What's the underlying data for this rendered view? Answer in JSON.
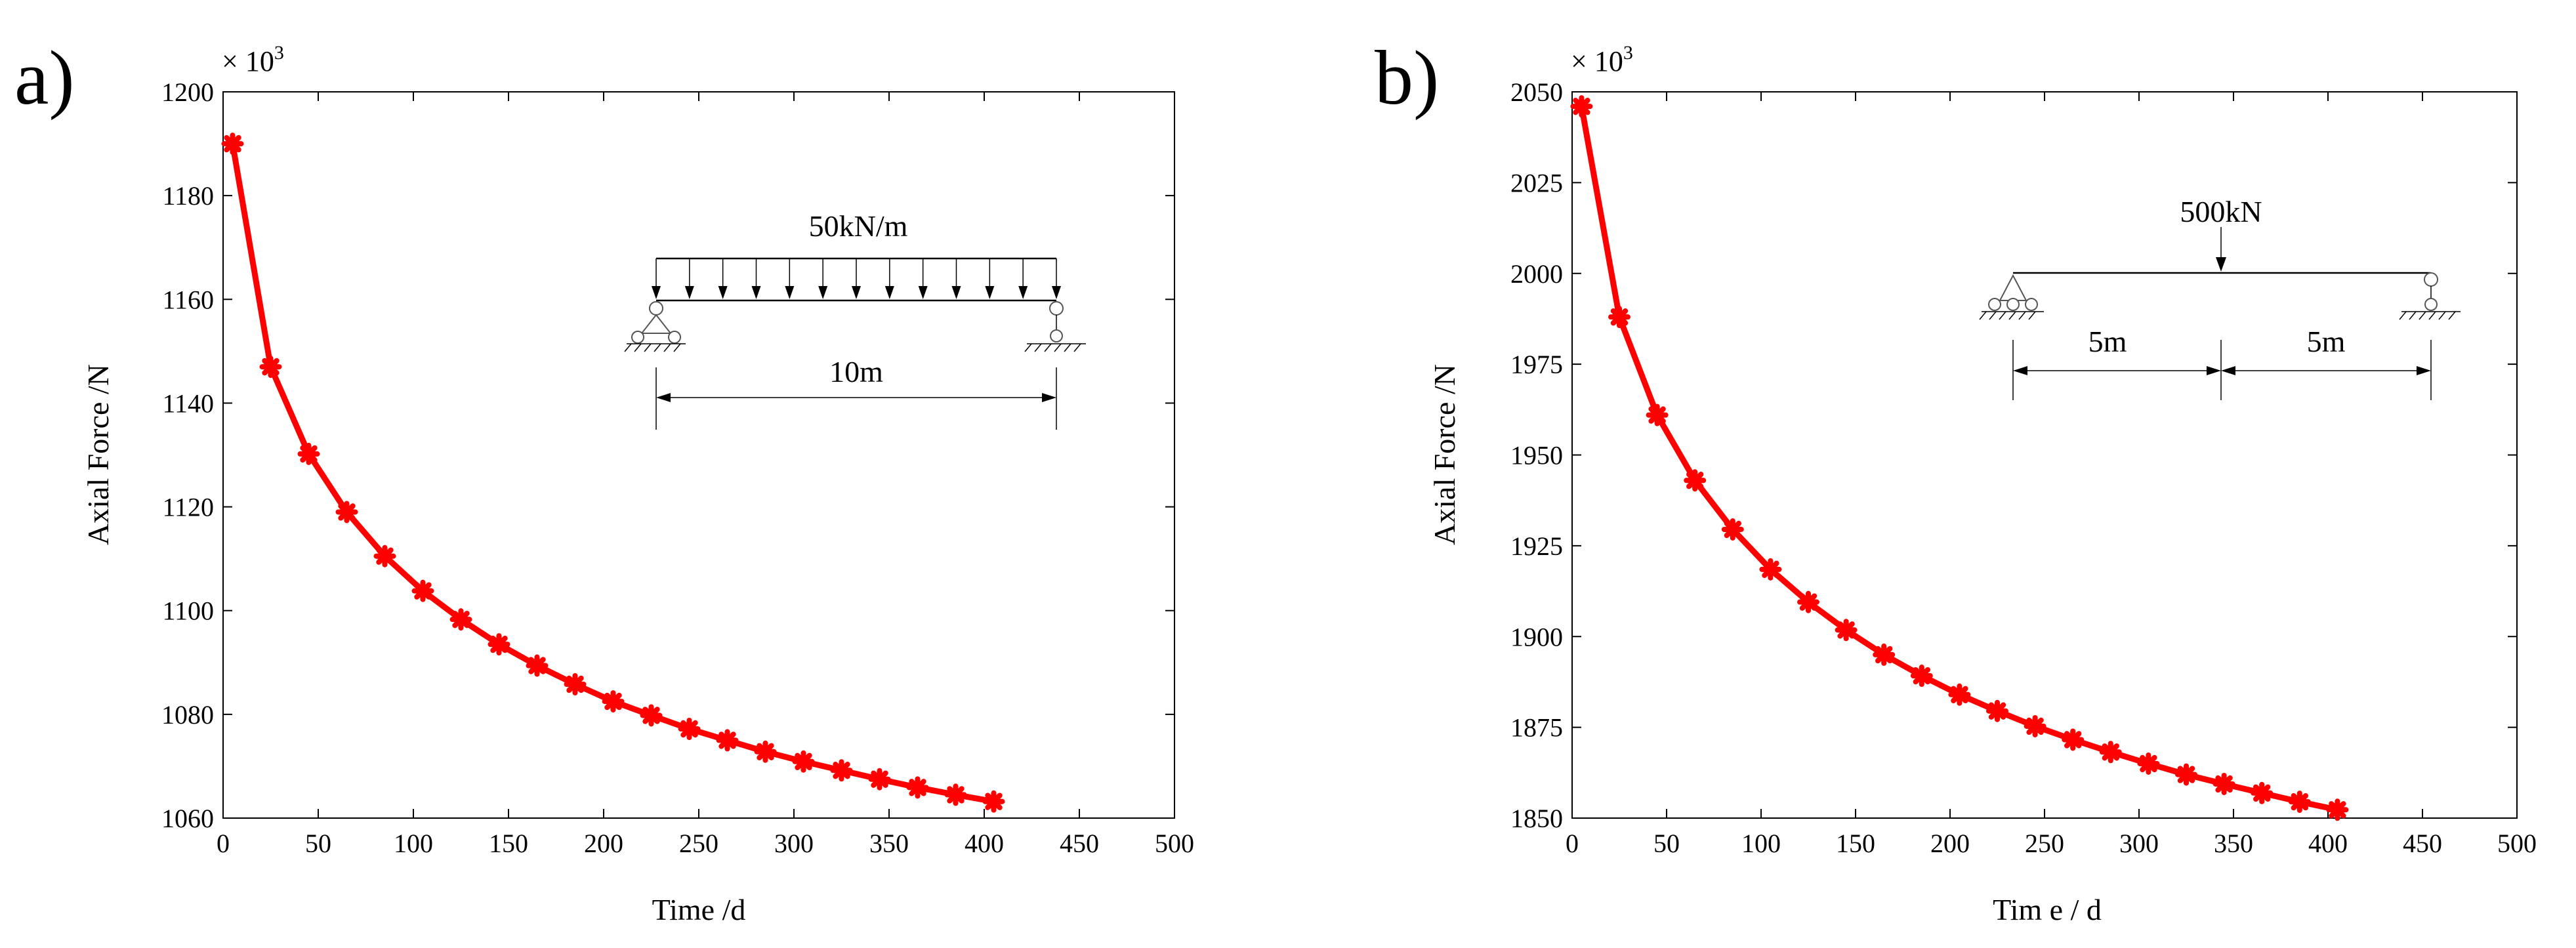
{
  "chart_data": [
    {
      "panel": "a)",
      "type": "line",
      "xlabel": "Time /d",
      "ylabel": "Axial Force /N",
      "y_multiplier": "× 10",
      "y_multiplier_exp": "3",
      "xlim": [
        0,
        500
      ],
      "ylim": [
        1060,
        1200
      ],
      "xticks": [
        0,
        50,
        100,
        150,
        200,
        250,
        300,
        350,
        400,
        450,
        500
      ],
      "yticks": [
        1060,
        1080,
        1100,
        1120,
        1140,
        1160,
        1180,
        1200
      ],
      "x": [
        5,
        25,
        45,
        65,
        85,
        105,
        125,
        145,
        165,
        185,
        205,
        225,
        245,
        265,
        285,
        305,
        325,
        345,
        365,
        385,
        405
      ],
      "values": [
        1190,
        1147,
        1130.2,
        1119,
        1110.5,
        1103.8,
        1098.3,
        1093.5,
        1089.4,
        1085.8,
        1082.5,
        1079.8,
        1077.2,
        1075,
        1072.8,
        1070.9,
        1069.2,
        1067.5,
        1065.9,
        1064.5,
        1063.2
      ],
      "color": "#ff0000",
      "annotations": {
        "load": "50kN/m",
        "span": "10m"
      }
    },
    {
      "panel": "b)",
      "type": "line",
      "xlabel": "Tim e  /  d",
      "ylabel": "Axial Force /N",
      "y_multiplier": "× 10",
      "y_multiplier_exp": "3",
      "xlim": [
        0,
        500
      ],
      "ylim": [
        1850,
        2050
      ],
      "xticks": [
        0,
        50,
        100,
        150,
        200,
        250,
        300,
        350,
        400,
        450,
        500
      ],
      "yticks": [
        1850,
        1875,
        1900,
        1925,
        1950,
        1975,
        2000,
        2025,
        2050
      ],
      "x": [
        5,
        25,
        45,
        65,
        85,
        105,
        125,
        145,
        165,
        185,
        205,
        225,
        245,
        265,
        285,
        305,
        325,
        345,
        365,
        385,
        405
      ],
      "values": [
        2046,
        1988,
        1961,
        1943,
        1929.5,
        1918.5,
        1909.5,
        1901.8,
        1895,
        1889.2,
        1884,
        1879.5,
        1875.3,
        1871.6,
        1868.2,
        1865,
        1862,
        1859.4,
        1856.9,
        1854.5,
        1852.3
      ],
      "color": "#ff0000",
      "annotations": {
        "load": "500kN",
        "span_left": "5m",
        "span_right": "5m"
      }
    }
  ]
}
